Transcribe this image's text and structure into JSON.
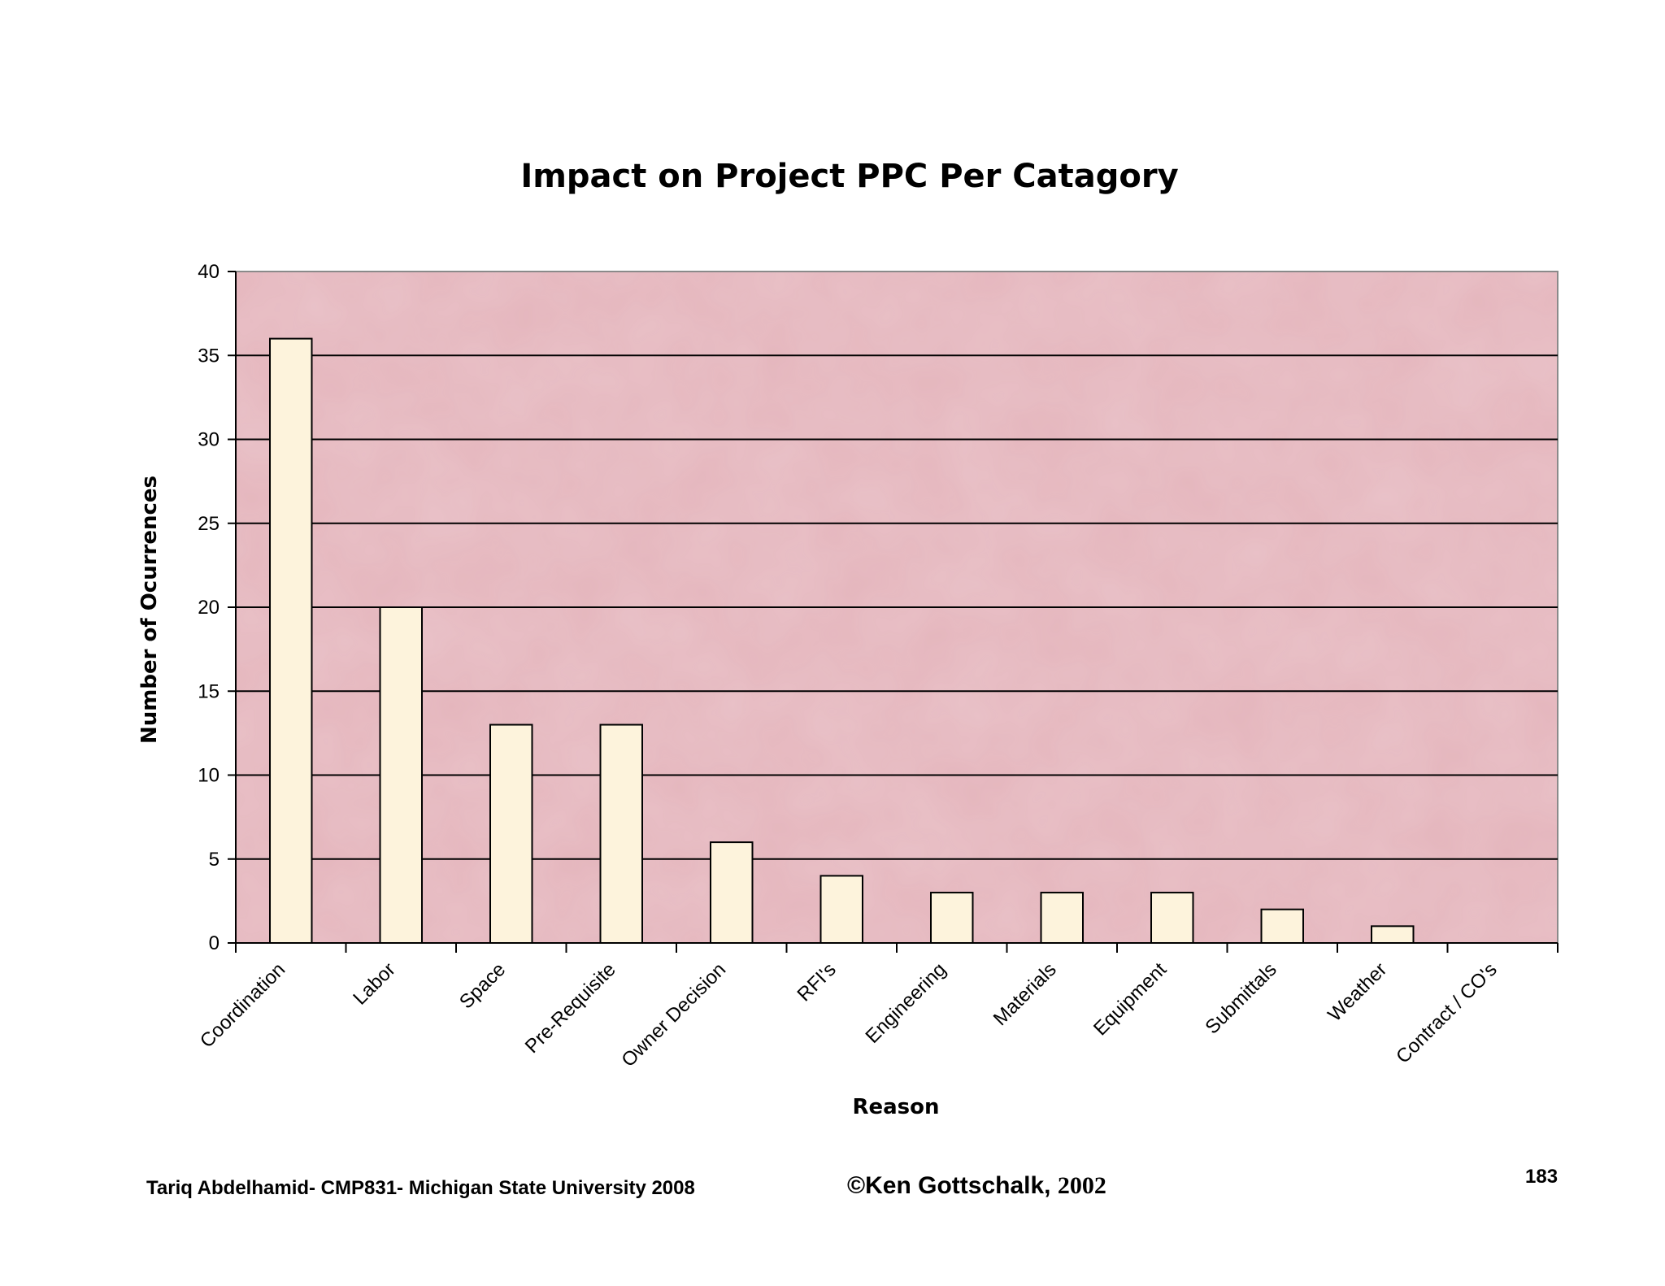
{
  "chart_data": {
    "type": "bar",
    "title": "Impact on Project PPC Per Catagory",
    "xlabel": "Reason",
    "ylabel": "Number of Ocurrences",
    "categories": [
      "Coordination",
      "Labor",
      "Space",
      "Pre-Requisite",
      "Owner Decision",
      "RFI's",
      "Engineering",
      "Materials",
      "Equipment",
      "Submittals",
      "Weather",
      "Contract / CO's"
    ],
    "values": [
      36,
      20,
      13,
      13,
      6,
      4,
      3,
      3,
      3,
      2,
      1,
      0
    ],
    "ylim": [
      0,
      40
    ],
    "yticks": [
      0,
      5,
      10,
      15,
      20,
      25,
      30,
      35,
      40
    ],
    "grid": true,
    "legend": "none",
    "colors": {
      "plot_background": "#e4b5bc",
      "bar_fill": "#fdf3dc",
      "bar_stroke": "#000000",
      "gridline": "#000000"
    }
  },
  "footer": {
    "left": "Tariq Abdelhamid- CMP831- Michigan State University 2008",
    "copyright_name": "©Ken Gottschalk, ",
    "copyright_year": "2002",
    "page_number": "183"
  }
}
